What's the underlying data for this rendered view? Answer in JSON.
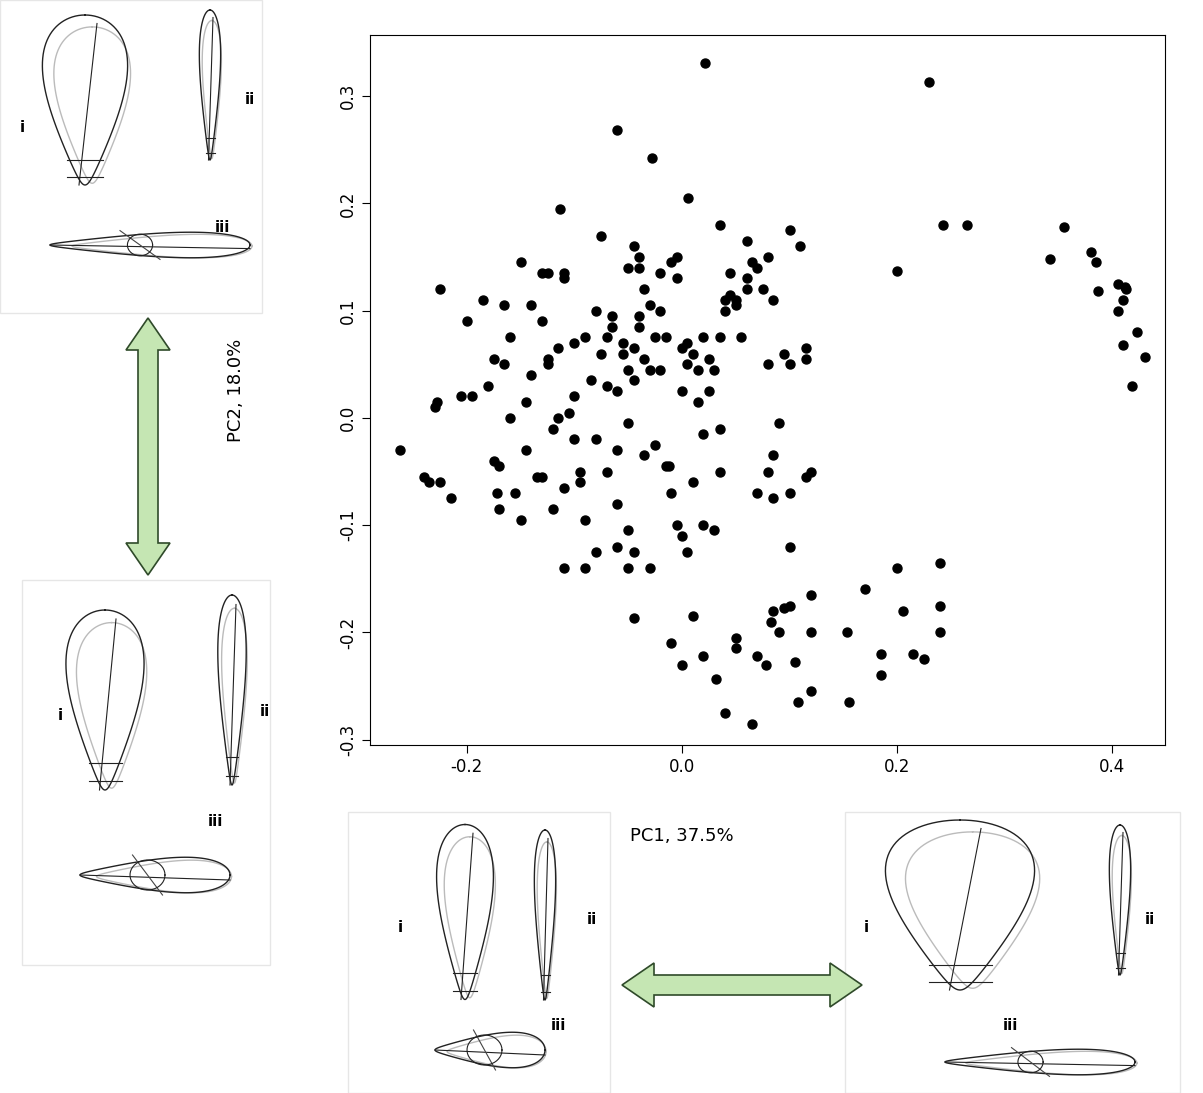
{
  "chart_data": {
    "type": "scatter",
    "x_label": "PC1, 37.5%",
    "y_label": "PC2, 18.0%",
    "color": "#000000",
    "marker": "o",
    "xlim": [
      -0.29,
      0.449
    ],
    "ylim": [
      -0.305,
      0.357
    ],
    "xticks": [
      -0.2,
      {
        "value": 0.0,
        "label": "0.0"
      },
      0.2,
      0.4
    ],
    "yticks": [
      -0.3,
      -0.2,
      -0.1,
      {
        "value": 0.0,
        "label": "0.0"
      },
      0.1,
      0.2,
      0.3
    ],
    "annotations": [
      [
        "i",
        "ii",
        "iii"
      ],
      [
        "i",
        "ii",
        "iii"
      ],
      [
        "i",
        "ii",
        "iii"
      ],
      [
        "i",
        "ii",
        "iii"
      ]
    ],
    "x": [
      -0.262,
      -0.225,
      0.021,
      -0.06,
      -0.028,
      0.006,
      -0.113,
      0.342,
      0.355,
      0.38,
      0.385,
      0.387,
      0.405,
      0.41,
      0.412,
      0.413,
      0.405,
      0.423,
      0.43,
      0.418,
      0.41,
      0.243,
      0.265,
      0.23,
      0.2,
      0.1,
      0.11,
      0.095,
      0.1,
      0.115,
      0.115,
      0.08,
      0.09,
      0.085,
      0.08,
      0.1,
      0.115,
      0.12,
      0.1,
      0.07,
      0.085,
      0.035,
      0.03,
      0.02,
      -0.005,
      0.0,
      0.005,
      -0.03,
      -0.05,
      -0.012,
      -0.045,
      -0.01,
      0.0,
      0.01,
      0.02,
      0.032,
      0.04,
      0.05,
      0.05,
      0.065,
      0.07,
      0.078,
      0.083,
      0.085,
      0.09,
      0.095,
      0.1,
      0.105,
      0.108,
      0.12,
      0.12,
      0.12,
      0.153,
      0.155,
      0.17,
      0.185,
      0.185,
      0.2,
      0.205,
      0.215,
      0.225,
      0.24,
      0.24,
      0.24,
      -0.24,
      -0.235,
      -0.225,
      -0.215,
      -0.23,
      -0.228,
      -0.205,
      -0.2,
      -0.195,
      -0.185,
      -0.18,
      -0.175,
      -0.175,
      -0.17,
      -0.172,
      -0.17,
      -0.165,
      -0.165,
      -0.16,
      -0.16,
      -0.155,
      -0.15,
      -0.15,
      -0.145,
      -0.145,
      -0.14,
      -0.14,
      -0.135,
      -0.13,
      -0.13,
      -0.125,
      -0.125,
      -0.12,
      -0.12,
      -0.115,
      -0.115,
      -0.11,
      -0.11,
      -0.11,
      -0.11,
      -0.105,
      -0.1,
      -0.1,
      -0.095,
      -0.095,
      -0.09,
      -0.09,
      -0.09,
      -0.085,
      -0.08,
      -0.08,
      -0.08,
      -0.075,
      -0.075,
      -0.07,
      -0.07,
      -0.07,
      -0.065,
      -0.065,
      -0.06,
      -0.06,
      -0.06,
      -0.055,
      -0.055,
      -0.05,
      -0.05,
      -0.05,
      -0.045,
      -0.045,
      -0.045,
      -0.04,
      -0.04,
      -0.035,
      -0.035,
      -0.03,
      -0.03,
      -0.025,
      -0.025,
      -0.02,
      -0.02,
      -0.015,
      -0.015,
      -0.01,
      -0.01,
      -0.005,
      -0.005,
      0.0,
      0.0,
      0.005,
      0.005,
      0.01,
      0.01,
      0.015,
      0.015,
      0.02,
      0.02,
      0.025,
      0.03,
      0.035,
      0.035,
      0.04,
      0.04,
      0.045,
      0.045,
      0.05,
      0.05,
      0.055,
      0.06,
      0.06,
      0.065,
      0.07,
      0.075,
      0.08,
      0.085,
      0.035,
      0.025,
      -0.13,
      -0.125,
      -0.1,
      -0.06,
      -0.04,
      -0.035,
      -0.02,
      0.06,
      -0.05,
      -0.045,
      -0.04
    ],
    "y": [
      -0.03,
      0.12,
      0.331,
      0.268,
      0.242,
      0.205,
      0.195,
      0.148,
      0.178,
      0.155,
      0.145,
      0.118,
      0.1,
      0.11,
      0.122,
      0.12,
      0.125,
      0.08,
      0.057,
      0.03,
      0.068,
      0.18,
      0.18,
      0.313,
      0.137,
      0.175,
      0.16,
      0.06,
      0.05,
      0.065,
      0.055,
      0.05,
      -0.005,
      -0.035,
      -0.05,
      -0.07,
      -0.055,
      -0.05,
      -0.12,
      -0.07,
      -0.075,
      -0.05,
      -0.105,
      -0.1,
      -0.1,
      -0.11,
      -0.125,
      -0.14,
      -0.14,
      -0.045,
      -0.187,
      -0.21,
      -0.23,
      -0.185,
      -0.222,
      -0.243,
      -0.275,
      -0.205,
      -0.215,
      -0.285,
      -0.222,
      -0.23,
      -0.19,
      -0.18,
      -0.2,
      -0.177,
      -0.175,
      -0.228,
      -0.265,
      -0.2,
      -0.255,
      -0.165,
      -0.2,
      -0.265,
      -0.16,
      -0.24,
      -0.22,
      -0.14,
      -0.18,
      -0.22,
      -0.225,
      -0.175,
      -0.135,
      -0.2,
      -0.055,
      -0.06,
      -0.06,
      -0.075,
      0.01,
      0.015,
      0.02,
      0.09,
      0.02,
      0.11,
      0.03,
      0.055,
      -0.04,
      -0.045,
      -0.07,
      -0.085,
      0.105,
      0.05,
      0.075,
      0.0,
      -0.07,
      -0.095,
      0.145,
      0.015,
      -0.03,
      0.105,
      0.04,
      -0.055,
      -0.055,
      0.09,
      0.055,
      0.05,
      -0.01,
      -0.085,
      0.065,
      0.0,
      0.13,
      0.135,
      -0.065,
      -0.14,
      0.005,
      -0.02,
      0.02,
      -0.06,
      -0.05,
      0.075,
      -0.14,
      -0.095,
      0.035,
      0.1,
      -0.02,
      -0.125,
      0.17,
      0.06,
      0.03,
      0.075,
      -0.05,
      0.085,
      0.095,
      0.025,
      -0.08,
      -0.12,
      0.07,
      0.06,
      -0.005,
      0.045,
      -0.105,
      0.035,
      0.065,
      -0.125,
      0.095,
      0.085,
      -0.035,
      0.055,
      0.045,
      0.105,
      -0.025,
      0.075,
      0.135,
      0.045,
      -0.045,
      0.075,
      -0.07,
      0.145,
      0.15,
      0.13,
      0.025,
      0.065,
      0.05,
      0.07,
      -0.06,
      0.06,
      0.045,
      0.015,
      0.075,
      -0.015,
      0.055,
      0.045,
      -0.01,
      0.075,
      0.11,
      0.1,
      0.115,
      0.135,
      0.11,
      0.105,
      0.075,
      0.12,
      0.165,
      0.145,
      0.14,
      0.12,
      0.15,
      0.11,
      0.18,
      0.025,
      0.135,
      0.135,
      0.07,
      -0.03,
      0.14,
      0.12,
      0.1,
      0.13,
      0.14,
      0.16,
      0.15
    ]
  }
}
